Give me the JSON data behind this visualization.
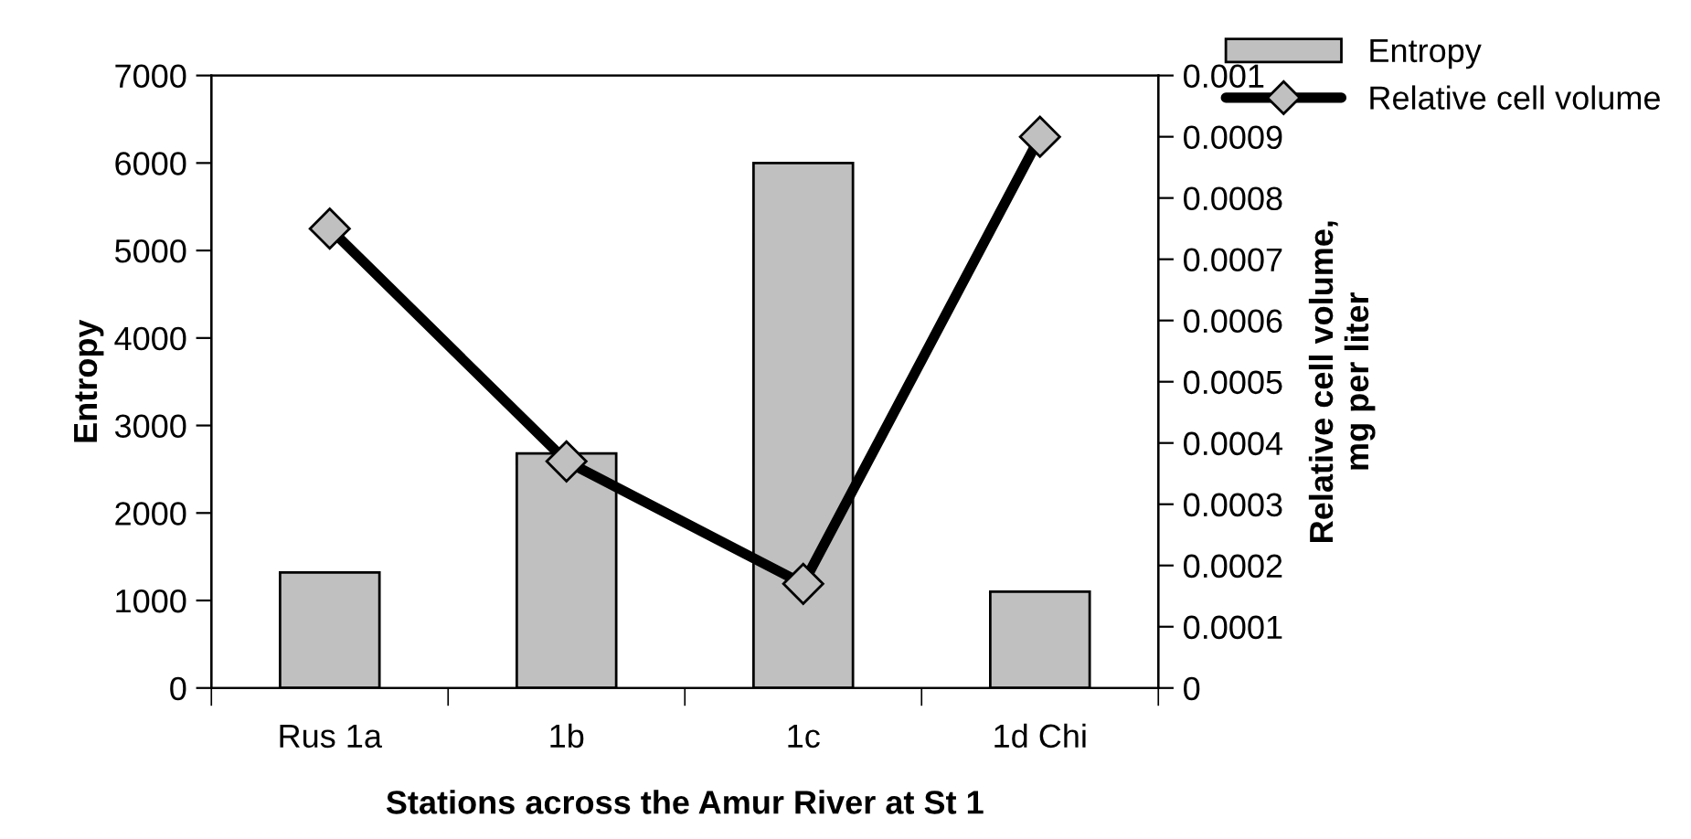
{
  "chart_data": {
    "type": "bar",
    "xlabel": "Stations across the Amur River at St 1",
    "ylabel": "Entropy",
    "y2label": "Relative cell volume,\nmg per liter",
    "categories": [
      "Rus 1a",
      "1b",
      "1c",
      "1d Chi"
    ],
    "series": [
      {
        "name": "Entropy",
        "color": "#c0c0c0",
        "values": [
          1320,
          2680,
          6000,
          1100
        ]
      },
      {
        "name": "Relative cell volume",
        "type": "line",
        "axis": "y2",
        "color": "#000000",
        "marker": "diamond",
        "values": [
          0.00075,
          0.00037,
          0.00017,
          0.0009
        ]
      }
    ],
    "ylim": [
      0,
      7000
    ],
    "yticks": [
      0,
      1000,
      2000,
      3000,
      4000,
      5000,
      6000,
      7000
    ],
    "y2lim": [
      0,
      0.001
    ],
    "y2ticks": [
      0,
      0.0001,
      0.0002,
      0.0003,
      0.0004,
      0.0005,
      0.0006,
      0.0007,
      0.0008,
      0.0009,
      0.001
    ],
    "legend": "top right",
    "grid": false
  }
}
